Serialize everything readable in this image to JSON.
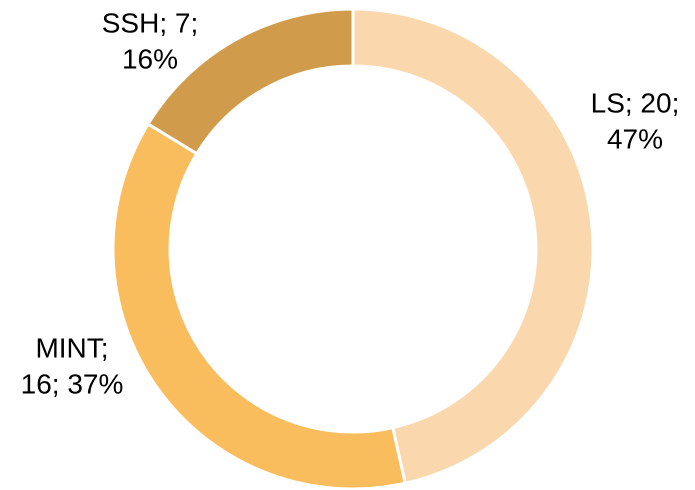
{
  "chart_data": {
    "type": "donut",
    "categories": [
      "LS",
      "MINT",
      "SSH"
    ],
    "values": [
      20,
      16,
      7
    ],
    "colors": [
      "#fad7ac",
      "#f9bd5e",
      "#d09c4c"
    ],
    "data_labels": [
      [
        "LS; 20;",
        "47%"
      ],
      [
        "MINT;",
        "16; 37%"
      ],
      [
        "SSH; 7;",
        "16%"
      ]
    ]
  }
}
